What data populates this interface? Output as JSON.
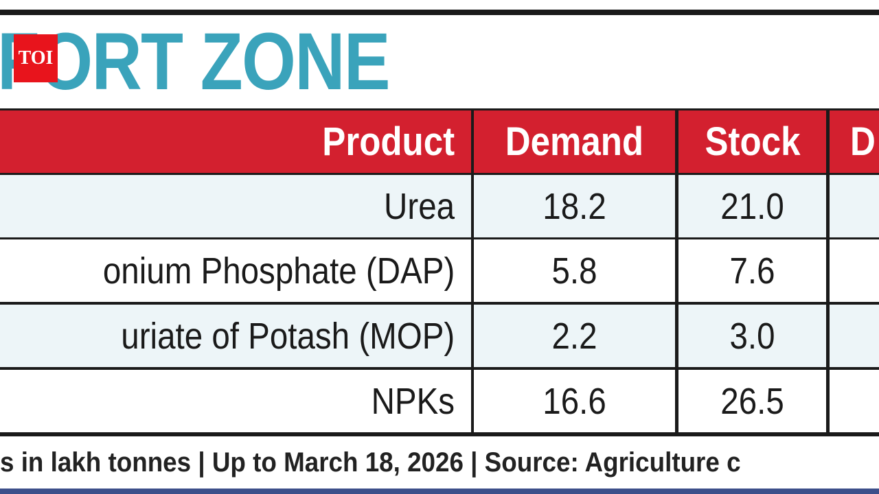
{
  "header": {
    "title": "FORT ZONE",
    "logo": "TOI"
  },
  "table": {
    "columns": [
      "Product",
      "Demand",
      "Stock",
      "D"
    ],
    "rows": [
      [
        "Urea",
        "18.2",
        "21.0"
      ],
      [
        "onium Phosphate (DAP)",
        "5.8",
        "7.6"
      ],
      [
        "uriate of Potash (MOP)",
        "2.2",
        "3.0"
      ],
      [
        "NPKs",
        "16.6",
        "26.5"
      ]
    ]
  },
  "footer": "s in lakh tonnes | Up to March 18, 2026 | Source: Agriculture c"
}
